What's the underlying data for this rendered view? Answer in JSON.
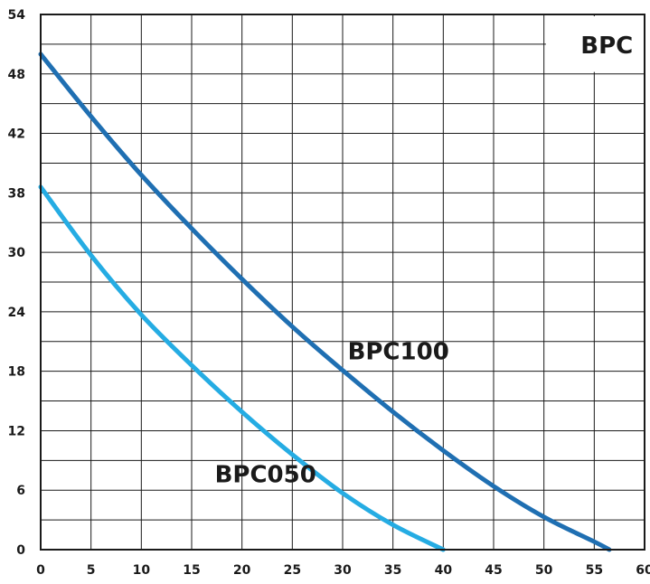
{
  "chart_data": {
    "type": "line",
    "title": "BPC",
    "xlabel": "",
    "ylabel": "",
    "xlim": [
      0,
      60
    ],
    "ylim": [
      0,
      54
    ],
    "x_ticks": [
      0,
      5,
      10,
      15,
      20,
      25,
      30,
      35,
      40,
      45,
      50,
      55,
      60
    ],
    "y_ticks": [
      0,
      6,
      12,
      18,
      24,
      30,
      38,
      42,
      48,
      54
    ],
    "grid": true,
    "series": [
      {
        "name": "BPC100",
        "color": "#1f6fb2",
        "x": [
          0,
          5,
          10,
          15,
          20,
          25,
          30,
          35,
          40,
          45,
          50,
          55,
          56.5
        ],
        "y": [
          50,
          43.7,
          37.8,
          32.4,
          27.3,
          22.5,
          18.1,
          13.9,
          10.0,
          6.4,
          3.3,
          0.8,
          0
        ]
      },
      {
        "name": "BPC050",
        "color": "#25ace3",
        "x": [
          0,
          5,
          10,
          15,
          20,
          25,
          30,
          35,
          40
        ],
        "y": [
          36.6,
          29.7,
          23.7,
          18.6,
          13.9,
          9.6,
          5.7,
          2.5,
          0
        ]
      }
    ]
  }
}
